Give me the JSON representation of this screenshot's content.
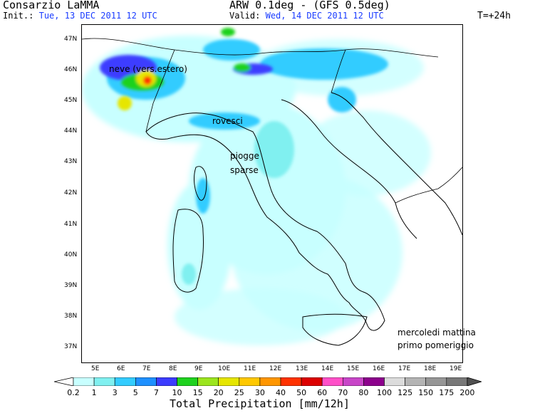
{
  "header": {
    "org": "Consarzio LaMMA",
    "init_prefix": "Init.:",
    "init_value": "Tue, 13 DEC 2011   12 UTC",
    "model": "ARW 0.1deg - (GFS 0.5deg)",
    "valid_prefix": "Valid:",
    "valid_value": "Wed, 14 DEC 2011   12 UTC",
    "step": "T=+24h"
  },
  "axes": {
    "lat_labels": [
      "47N",
      "46N",
      "45N",
      "44N",
      "43N",
      "42N",
      "41N",
      "40N",
      "39N",
      "38N",
      "37N"
    ],
    "lon_labels": [
      "5E",
      "6E",
      "7E",
      "8E",
      "9E",
      "10E",
      "11E",
      "12E",
      "13E",
      "14E",
      "15E",
      "16E",
      "17E",
      "18E",
      "19E"
    ]
  },
  "annotations": {
    "snow": "neve (vers.estero)",
    "showers": "rovesci",
    "rain_line1": "piogge",
    "rain_line2": "sparse",
    "period_line1": "mercoledi mattina",
    "period_line2": "primo pomeriggio"
  },
  "legend": {
    "title": "Total Precipitation [mm/12h]",
    "labels": [
      "0.2",
      "1",
      "3",
      "5",
      "7",
      "10",
      "15",
      "20",
      "25",
      "30",
      "40",
      "50",
      "60",
      "70",
      "80",
      "100",
      "125",
      "150",
      "175",
      "200"
    ],
    "colors": [
      "#c8ffff",
      "#80f0f0",
      "#33ccff",
      "#1e90ff",
      "#3c3cff",
      "#1fd21f",
      "#9be51e",
      "#e6e600",
      "#ffc800",
      "#ff9600",
      "#ff3200",
      "#dc0000",
      "#ff50c8",
      "#c846c8",
      "#8c008c",
      "#dcdcdc",
      "#b4b4b4",
      "#969696",
      "#787878",
      "#505050"
    ]
  }
}
